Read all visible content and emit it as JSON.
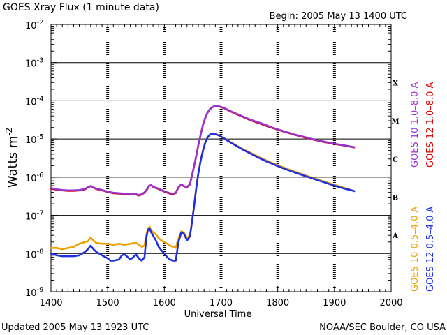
{
  "header": {
    "title": "GOES Xray Flux (1 minute data)",
    "begin": "Begin: 2005 May 13 1400 UTC"
  },
  "footer": {
    "updated": "Updated 2005 May 13 1923 UTC",
    "credit": "NOAA/SEC Boulder, CO USA"
  },
  "chart_data": {
    "type": "line",
    "title": "GOES Xray Flux (1 minute data)",
    "xlabel": "Universal Time",
    "ylabel": "Watts m",
    "ylabel_sup": "-2",
    "yscale": "log",
    "xlim": [
      1400,
      2000
    ],
    "ylim": [
      1e-09,
      0.01
    ],
    "x_ticks": [
      "1400",
      "1500",
      "1600",
      "1700",
      "1800",
      "1900",
      "2000"
    ],
    "y_ticks": [
      {
        "base": "10",
        "exp": "-9"
      },
      {
        "base": "10",
        "exp": "-8"
      },
      {
        "base": "10",
        "exp": "-7"
      },
      {
        "base": "10",
        "exp": "-6"
      },
      {
        "base": "10",
        "exp": "-5"
      },
      {
        "base": "10",
        "exp": "-4"
      },
      {
        "base": "10",
        "exp": "-3"
      },
      {
        "base": "10",
        "exp": "-2"
      }
    ],
    "grid": "horizontal lines at each decade from 1e-8 to 1e-3; dotted hour markers",
    "flare_classes": [
      {
        "label": "A",
        "level": 3e-08
      },
      {
        "label": "B",
        "level": 3e-07
      },
      {
        "label": "C",
        "level": 3e-06
      },
      {
        "label": "M",
        "level": 3e-05
      },
      {
        "label": "X",
        "level": 0.0003
      }
    ],
    "series": [
      {
        "name": "GOES 10 1.0-8.0 A",
        "color": "#9933cc",
        "x": [
          1400,
          1410,
          1420,
          1430,
          1440,
          1450,
          1460,
          1465,
          1470,
          1475,
          1480,
          1490,
          1500,
          1510,
          1520,
          1530,
          1540,
          1550,
          1555,
          1560,
          1565,
          1570,
          1573,
          1577,
          1580,
          1585,
          1590,
          1595,
          1600,
          1605,
          1610,
          1615,
          1620,
          1625,
          1630,
          1635,
          1640,
          1645,
          1648,
          1652,
          1656,
          1660,
          1664,
          1668,
          1672,
          1676,
          1680,
          1684,
          1688,
          1692,
          1696,
          1700,
          1705,
          1710,
          1720,
          1730,
          1740,
          1750,
          1760,
          1770,
          1780,
          1790,
          1800,
          1810,
          1820,
          1830,
          1840,
          1850,
          1860,
          1870,
          1880,
          1890,
          1900,
          1910,
          1920,
          1930,
          1935
        ],
        "values": [
          5.2e-07,
          4.8e-07,
          4.6e-07,
          4.5e-07,
          4.5e-07,
          4.6e-07,
          4.9e-07,
          5.5e-07,
          5.9e-07,
          5.4e-07,
          5e-07,
          4.6e-07,
          4.2e-07,
          3.9e-07,
          3.8e-07,
          3.7e-07,
          3.7e-07,
          3.6e-07,
          3.4e-07,
          3.6e-07,
          4e-07,
          5e-07,
          6e-07,
          6.2e-07,
          5.7e-07,
          5.3e-07,
          5e-07,
          4.6e-07,
          4.3e-07,
          4e-07,
          3.8e-07,
          3.7e-07,
          3.9e-07,
          5.5e-07,
          6.5e-07,
          5.8e-07,
          5.6e-07,
          6.5e-07,
          1e-06,
          1.8e-06,
          3.5e-06,
          7e-06,
          1.3e-05,
          2.3e-05,
          3.6e-05,
          4.9e-05,
          6e-05,
          6.8e-05,
          7.2e-05,
          7.3e-05,
          7.2e-05,
          6.9e-05,
          6.5e-05,
          6e-05,
          5.1e-05,
          4.4e-05,
          3.8e-05,
          3.3e-05,
          2.9e-05,
          2.6e-05,
          2.3e-05,
          2e-05,
          1.8e-05,
          1.6e-05,
          1.45e-05,
          1.3e-05,
          1.2e-05,
          1.1e-05,
          1e-05,
          9.3e-06,
          8.6e-06,
          8e-06,
          7.5e-06,
          7.1e-06,
          6.7e-06,
          6.3e-06,
          6.1e-06
        ]
      },
      {
        "name": "GOES 12 1.0-8.0 A",
        "color": "#dd0000",
        "x": [
          1400,
          1410,
          1420,
          1430,
          1440,
          1450,
          1460,
          1465,
          1470,
          1475,
          1480,
          1490,
          1500,
          1510,
          1520,
          1530,
          1540,
          1550,
          1555,
          1560,
          1565,
          1570,
          1573,
          1577,
          1580,
          1585,
          1590,
          1595,
          1600,
          1605,
          1610,
          1615,
          1620,
          1625,
          1630,
          1635,
          1640,
          1645,
          1648,
          1652,
          1656,
          1660,
          1664,
          1668,
          1672,
          1676,
          1680,
          1684,
          1688,
          1692,
          1696,
          1700,
          1705,
          1710,
          1720,
          1730,
          1740,
          1750,
          1760,
          1770,
          1780,
          1790,
          1800,
          1810,
          1820,
          1830,
          1840,
          1850,
          1860,
          1870,
          1880,
          1890,
          1900,
          1910,
          1920,
          1930,
          1935
        ],
        "values": [
          5e-07,
          4.7e-07,
          4.5e-07,
          4.4e-07,
          4.4e-07,
          4.5e-07,
          4.8e-07,
          5.4e-07,
          5.8e-07,
          5.3e-07,
          4.9e-07,
          4.5e-07,
          4.1e-07,
          3.8e-07,
          3.7e-07,
          3.6e-07,
          3.6e-07,
          3.5e-07,
          3.3e-07,
          3.5e-07,
          3.9e-07,
          4.9e-07,
          5.9e-07,
          6.1e-07,
          5.6e-07,
          5.2e-07,
          4.9e-07,
          4.5e-07,
          4.2e-07,
          3.9e-07,
          3.7e-07,
          3.6e-07,
          3.8e-07,
          5.4e-07,
          6.4e-07,
          5.7e-07,
          5.5e-07,
          6.4e-07,
          1e-06,
          1.8e-06,
          3.4e-06,
          6.9e-06,
          1.3e-05,
          2.3e-05,
          3.5e-05,
          4.8e-05,
          5.9e-05,
          6.7e-05,
          7.1e-05,
          7.2e-05,
          7.1e-05,
          6.8e-05,
          6.4e-05,
          5.9e-05,
          5e-05,
          4.3e-05,
          3.7e-05,
          3.2e-05,
          2.8e-05,
          2.5e-05,
          2.2e-05,
          1.95e-05,
          1.75e-05,
          1.57e-05,
          1.42e-05,
          1.28e-05,
          1.17e-05,
          1.07e-05,
          9.8e-06,
          9.1e-06,
          8.4e-06,
          7.9e-06,
          7.4e-06,
          7e-06,
          6.6e-06,
          6.2e-06,
          6e-06
        ]
      },
      {
        "name": "GOES 10 0.5-4.0 A",
        "color": "#f0a000",
        "x": [
          1400,
          1410,
          1420,
          1430,
          1440,
          1450,
          1460,
          1465,
          1470,
          1475,
          1480,
          1490,
          1500,
          1510,
          1520,
          1530,
          1540,
          1550,
          1555,
          1560,
          1565,
          1568,
          1571,
          1574,
          1577,
          1580,
          1585,
          1590,
          1595,
          1600,
          1605,
          1610,
          1615,
          1620,
          1625,
          1630,
          1635,
          1640,
          1645,
          1648,
          1652,
          1656,
          1660,
          1664,
          1668,
          1672,
          1676,
          1680,
          1684,
          1688,
          1692,
          1696,
          1700,
          1705,
          1710,
          1720,
          1730,
          1740,
          1750,
          1760,
          1770,
          1780,
          1790,
          1800,
          1810,
          1820,
          1830,
          1840,
          1850,
          1860,
          1870,
          1880,
          1890,
          1900,
          1910,
          1920,
          1930,
          1935
        ],
        "values": [
          1.4e-08,
          1.4e-08,
          1.3e-08,
          1.4e-08,
          1.5e-08,
          1.8e-08,
          2e-08,
          2.1e-08,
          2.6e-08,
          2.2e-08,
          1.9e-08,
          1.8e-08,
          1.8e-08,
          1.7e-08,
          1.8e-08,
          1.7e-08,
          1.8e-08,
          1.9e-08,
          1.7e-08,
          1.5e-08,
          1.6e-08,
          3e-08,
          4.5e-08,
          5e-08,
          4e-08,
          3.6e-08,
          3.2e-08,
          2.5e-08,
          2.2e-08,
          2e-08,
          1.8e-08,
          1.6e-08,
          1.5e-08,
          1.4e-08,
          2.5e-08,
          3.8e-08,
          3.5e-08,
          2.5e-08,
          3e-08,
          6e-08,
          1.6e-07,
          5e-07,
          1.3e-06,
          2.8e-06,
          5e-06,
          8e-06,
          1.1e-05,
          1.3e-05,
          1.4e-05,
          1.38e-05,
          1.32e-05,
          1.25e-05,
          1.16e-05,
          1.06e-05,
          9.5e-06,
          7.8e-06,
          6.4e-06,
          5.3e-06,
          4.5e-06,
          3.8e-06,
          3.2e-06,
          2.75e-06,
          2.35e-06,
          2.05e-06,
          1.8e-06,
          1.58e-06,
          1.4e-06,
          1.25e-06,
          1.1e-06,
          9.8e-07,
          8.8e-07,
          7.8e-07,
          7e-07,
          6.3e-07,
          5.7e-07,
          5.1e-07,
          4.6e-07,
          4.3e-07
        ]
      },
      {
        "name": "GOES 12 0.5-4.0 A",
        "color": "#1f2fe0",
        "x": [
          1400,
          1410,
          1420,
          1430,
          1440,
          1450,
          1460,
          1465,
          1470,
          1475,
          1480,
          1490,
          1500,
          1505,
          1510,
          1520,
          1525,
          1530,
          1540,
          1545,
          1550,
          1555,
          1560,
          1565,
          1568,
          1571,
          1574,
          1577,
          1580,
          1585,
          1590,
          1595,
          1600,
          1605,
          1610,
          1615,
          1620,
          1625,
          1630,
          1635,
          1640,
          1645,
          1648,
          1652,
          1656,
          1660,
          1664,
          1668,
          1672,
          1676,
          1680,
          1684,
          1688,
          1692,
          1696,
          1700,
          1705,
          1710,
          1720,
          1730,
          1740,
          1750,
          1760,
          1770,
          1780,
          1790,
          1800,
          1810,
          1820,
          1830,
          1840,
          1850,
          1860,
          1870,
          1880,
          1890,
          1900,
          1910,
          1920,
          1930,
          1935
        ],
        "values": [
          1e-08,
          9e-09,
          8.5e-09,
          8.5e-09,
          8.5e-09,
          9e-09,
          1.1e-08,
          1.3e-08,
          1.6e-08,
          1.3e-08,
          1.1e-08,
          9e-09,
          7.5e-09,
          6.5e-09,
          6.5e-09,
          7e-09,
          9e-09,
          9.5e-09,
          7e-09,
          8e-09,
          9.5e-09,
          7.5e-09,
          6.5e-09,
          8e-09,
          2.5e-08,
          4.2e-08,
          4.5e-08,
          3.5e-08,
          3e-08,
          2.2e-08,
          1.5e-08,
          1.2e-08,
          1e-08,
          8e-09,
          7e-09,
          6.5e-09,
          6.5e-09,
          2e-08,
          3.6e-08,
          3.2e-08,
          2.2e-08,
          2.8e-08,
          5.5e-08,
          1.5e-07,
          4.8e-07,
          1.25e-06,
          2.7e-06,
          4.8e-06,
          7.8e-06,
          1.08e-05,
          1.28e-05,
          1.38e-05,
          1.36e-05,
          1.3e-05,
          1.23e-05,
          1.14e-05,
          1.04e-05,
          9.3e-06,
          7.6e-06,
          6.2e-06,
          5.1e-06,
          4.3e-06,
          3.6e-06,
          3.05e-06,
          2.6e-06,
          2.25e-06,
          1.95e-06,
          1.7e-06,
          1.5e-06,
          1.33e-06,
          1.18e-06,
          1.05e-06,
          9.4e-07,
          8.4e-07,
          7.5e-07,
          6.7e-07,
          6e-07,
          5.4e-07,
          4.9e-07,
          4.5e-07,
          4.3e-07
        ]
      }
    ],
    "right_legend_top": [
      {
        "text": "GOES 10 1.0–8.0 A",
        "color": "#9933cc"
      },
      {
        "text": "GOES 12 1.0–8.0 A",
        "color": "#dd0000"
      }
    ],
    "right_legend_bottom": [
      {
        "text": "GOES 10 0.5–4.0 A",
        "color": "#f0a000"
      },
      {
        "text": "GOES 12 0.5–4.0 A",
        "color": "#1f2fe0"
      }
    ]
  }
}
